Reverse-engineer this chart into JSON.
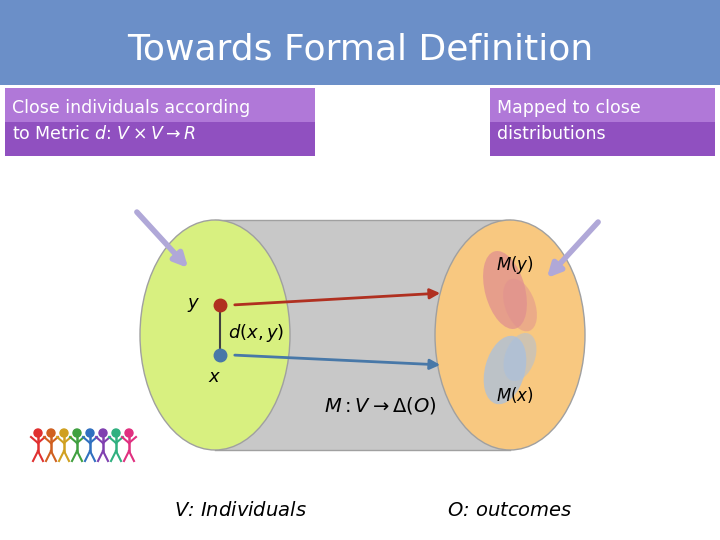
{
  "title": "Towards Formal Definition",
  "title_bg_top": "#6b8fc8",
  "title_bg_bot": "#5070a8",
  "title_color": "white",
  "title_fontsize": 26,
  "bg_color": "#ffffff",
  "left_box_text1": "Close individuals according",
  "left_box_text2": "to Metric $d$: $V \\times V \\rightarrow R$",
  "right_box_text1": "Mapped to close",
  "right_box_text2": "distributions",
  "box_bg_left": "#c090e0",
  "box_bg_right": "#9060c8",
  "box_color": "white",
  "left_ellipse_color": "#d8f080",
  "right_ellipse_color": "#f8c880",
  "cylinder_color": "#c8c8c8",
  "cylinder_edge": "#a0a0a0",
  "point_y_color": "#b03020",
  "point_x_color": "#4878a8",
  "line_color": "#404040",
  "arrow_y_color": "#b03020",
  "arrow_x_color": "#4878a8",
  "label_y": "$y$",
  "label_x": "$x$",
  "label_dxy": "$d(x, y)$",
  "label_M": "$M: V \\rightarrow \\Delta(O)$",
  "label_My": "$M(y)$",
  "label_Mx": "$M(x)$",
  "label_V": "$V$: Individuals",
  "label_O": "$O$: outcomes",
  "arrow_indicator_color": "#b0a8d8",
  "my_blob_color": "#e09090",
  "mx_blob_color": "#a8c0e0",
  "people_colors": [
    "#e03030",
    "#d06020",
    "#d0a020",
    "#40a040",
    "#3070c0",
    "#8040b0",
    "#30b080",
    "#e03080"
  ]
}
